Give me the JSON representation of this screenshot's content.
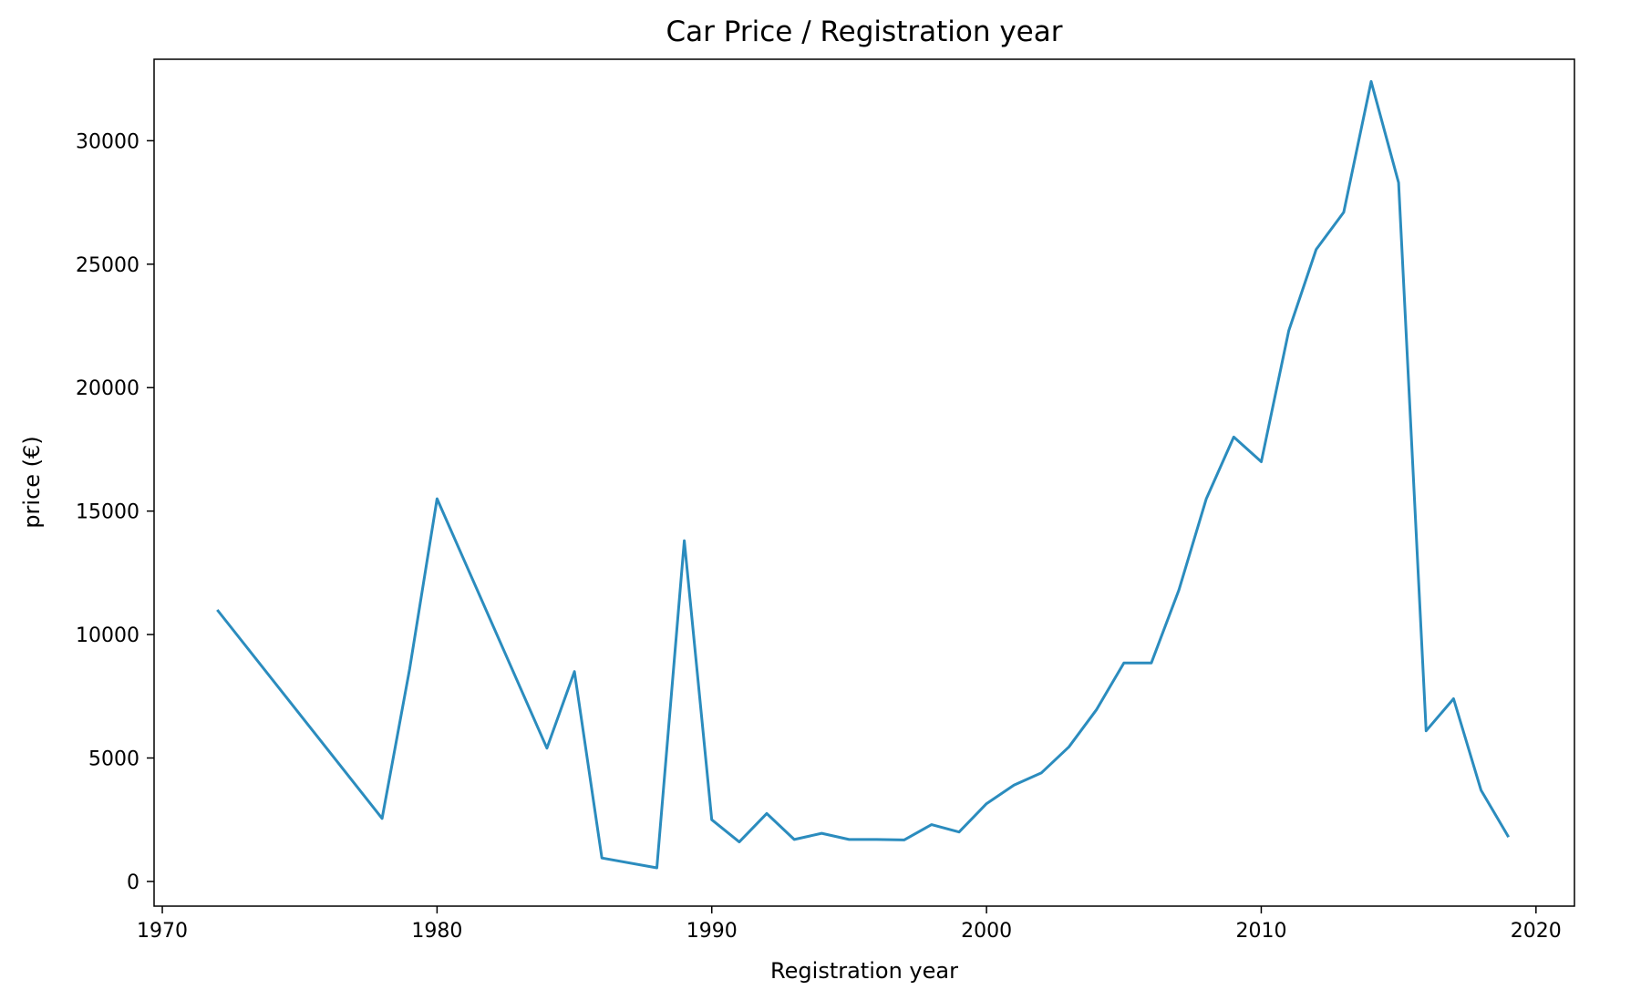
{
  "chart_data": {
    "type": "line",
    "title": "Car Price / Registration year",
    "xlabel": "Registration year",
    "ylabel": "price (€)",
    "xlim": [
      1969.7,
      2021.4
    ],
    "ylim": [
      -1000,
      33300
    ],
    "xticks": [
      1970,
      1980,
      1990,
      2000,
      2010,
      2020
    ],
    "yticks": [
      0,
      5000,
      10000,
      15000,
      20000,
      25000,
      30000
    ],
    "grid": false,
    "line_color": "#2b8cbe",
    "series": [
      {
        "x": [
          1972,
          1978,
          1979,
          1980,
          1984,
          1985,
          1986,
          1988,
          1989,
          1990,
          1991,
          1992,
          1993,
          1994,
          1995,
          1996,
          1997,
          1998,
          1999,
          2000,
          2001,
          2002,
          2003,
          2004,
          2005,
          2006,
          2007,
          2008,
          2009,
          2010,
          2011,
          2012,
          2013,
          2014,
          2015,
          2016,
          2017,
          2018,
          2019
        ],
        "y": [
          11000,
          2550,
          8600,
          15500,
          5400,
          8500,
          950,
          550,
          13800,
          2500,
          1600,
          2750,
          1700,
          1950,
          1700,
          1700,
          1680,
          2300,
          2000,
          3150,
          3900,
          4400,
          5450,
          6950,
          8850,
          8850,
          11800,
          15500,
          18000,
          17000,
          22300,
          25600,
          27100,
          32400,
          28300,
          6100,
          7400,
          3700,
          1800
        ]
      }
    ]
  }
}
